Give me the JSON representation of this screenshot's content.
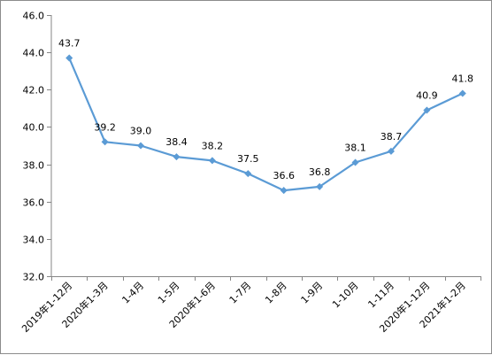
{
  "chart_data": {
    "type": "line",
    "title": "",
    "xlabel": "",
    "ylabel": "",
    "categories": [
      "2019年1-12月",
      "2020年1-3月",
      "1-4月",
      "1-5月",
      "2020年1-6月",
      "1-7月",
      "1-8月",
      "1-9月",
      "1-10月",
      "1-11月",
      "2020年1-12月",
      "2021年1-2月"
    ],
    "series": [
      {
        "values": [
          43.7,
          39.2,
          39.0,
          38.4,
          38.2,
          37.5,
          36.6,
          36.8,
          38.1,
          38.7,
          40.9,
          41.8
        ]
      }
    ],
    "data_labels": [
      "43.7",
      "39.2",
      "39.0",
      "38.4",
      "38.2",
      "37.5",
      "36.6",
      "36.8",
      "38.1",
      "38.7",
      "40.9",
      "41.8"
    ],
    "ylim": [
      32.0,
      46.0
    ],
    "yticks": [
      "32.0",
      "34.0",
      "36.0",
      "38.0",
      "40.0",
      "42.0",
      "44.0",
      "46.0"
    ],
    "grid": false,
    "legend": "none",
    "colors": {
      "line": "#5b9bd5",
      "axis": "#868686",
      "text": "#000000"
    }
  }
}
